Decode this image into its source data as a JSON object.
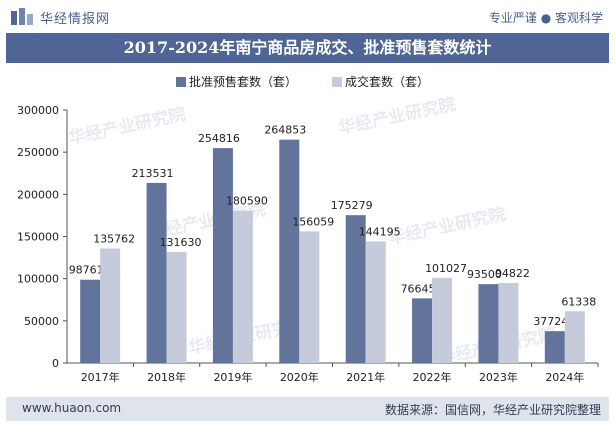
{
  "header": {
    "brand": "华经情报网",
    "tagline": "专业严谨 ● 客观科学"
  },
  "footer": {
    "website": "www.huaon.com",
    "source": "数据来源：国信网，华经产业研究院整理"
  },
  "watermark": "华经产业研究院",
  "colors": {
    "series1": "#62739c",
    "series2": "#c5cbda",
    "title_bg": "#4e6596",
    "footer_bg": "#dfe3ec"
  },
  "chart_data": {
    "type": "bar",
    "title": "2017-2024年南宁商品房成交、批准预售套数统计",
    "categories": [
      "2017年",
      "2018年",
      "2019年",
      "2020年",
      "2021年",
      "2022年",
      "2023年",
      "2024年"
    ],
    "series": [
      {
        "name": "批准预售套数（套）",
        "values": [
          98761,
          213531,
          254816,
          264853,
          175279,
          76645,
          93500,
          37724
        ]
      },
      {
        "name": "成交套数（套）",
        "values": [
          135762,
          131630,
          180590,
          156059,
          144195,
          101027,
          94822,
          61338
        ]
      }
    ],
    "yticks": [
      "0",
      "50000",
      "100000",
      "150000",
      "200000",
      "250000",
      "300000"
    ],
    "ylim": [
      0,
      300000
    ],
    "legend_position": "top",
    "grid": false
  }
}
